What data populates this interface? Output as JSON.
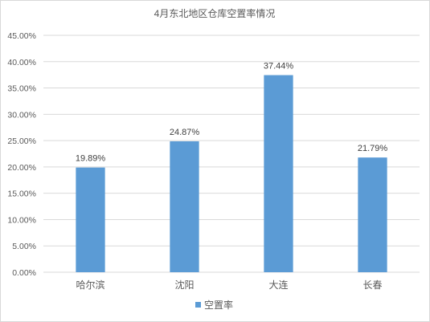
{
  "chart_data": {
    "type": "bar",
    "title": "4月东北地区仓库空置率情况",
    "categories": [
      "哈尔滨",
      "沈阳",
      "大连",
      "长春"
    ],
    "series": [
      {
        "name": "空置率",
        "values": [
          19.89,
          24.87,
          37.44,
          21.79
        ],
        "labels": [
          "19.89%",
          "24.87%",
          "37.44%",
          "21.79%"
        ]
      }
    ],
    "ylim": [
      0,
      45
    ],
    "yticks": [
      "0.00%",
      "5.00%",
      "10.00%",
      "15.00%",
      "20.00%",
      "25.00%",
      "30.00%",
      "35.00%",
      "40.00%",
      "45.00%"
    ],
    "grid": true,
    "legend_position": "bottom",
    "colors": {
      "bar": "#5b9bd5",
      "grid": "#d9d9d9",
      "text": "#595959",
      "label": "#404040"
    }
  }
}
